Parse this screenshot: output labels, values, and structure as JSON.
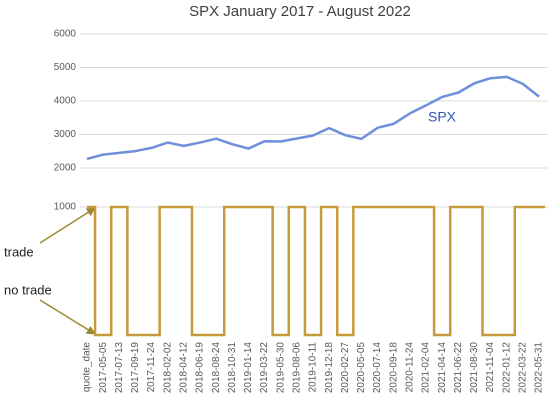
{
  "chart_data": [
    {
      "type": "line",
      "title": "SPX January 2017 - August 2022",
      "series": [
        {
          "name": "SPX",
          "color": "#6f8fdc",
          "values": [
            2270,
            2400,
            2450,
            2505,
            2600,
            2760,
            2660,
            2760,
            2875,
            2710,
            2580,
            2800,
            2790,
            2880,
            2970,
            3190,
            2980,
            2870,
            3200,
            3320,
            3630,
            3870,
            4120,
            4250,
            4530,
            4680,
            4720,
            4510,
            4130
          ]
        }
      ],
      "ylim": [
        1500,
        6000
      ],
      "yticks": [
        2000,
        3000,
        4000,
        5000,
        6000
      ],
      "grid": true
    },
    {
      "type": "step",
      "categories": [
        "quote_date",
        "2017-05-05",
        "2017-07-13",
        "2017-09-19",
        "2017-11-24",
        "2018-02-02",
        "2018-04-12",
        "2018-06-19",
        "2018-08-24",
        "2018-10-31",
        "2019-01-14",
        "2019-03-22",
        "2019-05-30",
        "2019-08-06",
        "2019-10-11",
        "2019-12-18",
        "2020-02-27",
        "2020-05-05",
        "2020-07-14",
        "2020-09-18",
        "2020-11-24",
        "2021-02-04",
        "2021-04-14",
        "2021-06-22",
        "2021-08-30",
        "2021-11-04",
        "2022-01-12",
        "2022-03-22",
        "2022-05-31"
      ],
      "values": [
        1000,
        0,
        1000,
        0,
        0,
        1000,
        1000,
        0,
        0,
        1000,
        1000,
        1000,
        0,
        1000,
        0,
        1000,
        0,
        1000,
        1000,
        1000,
        1000,
        1000,
        0,
        1000,
        1000,
        0,
        0,
        1000,
        1000
      ],
      "color": "#c49a3a",
      "annotations": [
        "trade",
        "no trade"
      ],
      "ylim": [
        0,
        1000
      ],
      "yticks": [
        1000
      ],
      "grid": true
    }
  ]
}
